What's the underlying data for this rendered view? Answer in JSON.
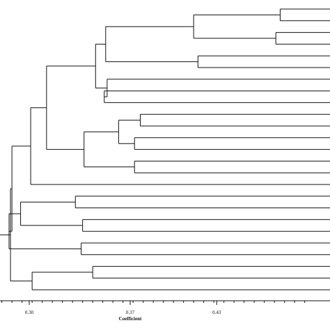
{
  "chart_data": {
    "type": "dendrogram",
    "orientation": "horizontal",
    "xlabel": "Coefficient",
    "ticks": [
      {
        "value": 0.3,
        "label": "0.30"
      },
      {
        "value": 0.37,
        "label": "0.37"
      },
      {
        "value": 0.43,
        "label": "0.43"
      }
    ],
    "leaf_count": 25,
    "tree": {
      "h": 0.287,
      "children": [
        {
          "h": 0.288,
          "children": [
            {
              "h": 0.301,
              "children": [
                {
                  "h": 0.312,
                  "children": [
                    {
                      "h": 0.346,
                      "children": [
                        {
                          "h": 0.353,
                          "children": [
                            {
                              "h": 0.414,
                              "children": [
                                {
                                  "h": 0.474,
                                  "children": [
                                    {
                                      "leaf": 1
                                    },
                                    {
                                      "leaf": 2
                                    }
                                  ]
                                },
                                {
                                  "h": 0.471,
                                  "children": [
                                    {
                                      "leaf": 3
                                    },
                                    {
                                      "leaf": 4
                                    }
                                  ]
                                }
                              ]
                            },
                            {
                              "h": 0.417,
                              "children": [
                                {
                                  "leaf": 5
                                },
                                {
                                  "leaf": 6
                                }
                              ]
                            }
                          ]
                        },
                        {
                          "h": 0.354,
                          "children": [
                            {
                              "leaf": 7
                            },
                            {
                              "h": 0.352,
                              "children": [
                                {
                                  "leaf": 8
                                },
                                {
                                  "leaf": 9
                                }
                              ]
                            }
                          ]
                        }
                      ]
                    },
                    {
                      "h": 0.338,
                      "children": [
                        {
                          "h": 0.362,
                          "children": [
                            {
                              "h": 0.377,
                              "children": [
                                {
                                  "leaf": 10
                                },
                                {
                                  "leaf": 11
                                }
                              ]
                            },
                            {
                              "h": 0.373,
                              "children": [
                                {
                                  "leaf": 12
                                },
                                {
                                  "leaf": 13
                                }
                              ]
                            }
                          ]
                        },
                        {
                          "h": 0.373,
                          "children": [
                            {
                              "leaf": 14
                            },
                            {
                              "leaf": 15
                            }
                          ]
                        }
                      ]
                    }
                  ]
                },
                {
                  "leaf": 16
                }
              ]
            },
            {
              "h": 0.286,
              "children": [
                {
                  "h": 0.294,
                  "children": [
                    {
                      "h": 0.332,
                      "children": [
                        {
                          "leaf": 17
                        },
                        {
                          "leaf": 18
                        }
                      ]
                    },
                    {
                      "h": 0.337,
                      "children": [
                        {
                          "leaf": 19
                        },
                        {
                          "leaf": 20
                        }
                      ]
                    }
                  ]
                },
                {
                  "h": 0.336,
                  "children": [
                    {
                      "leaf": 21
                    },
                    {
                      "leaf": 22
                    }
                  ]
                }
              ]
            }
          ]
        },
        {
          "h": 0.302,
          "children": [
            {
              "h": 0.344,
              "children": [
                {
                  "leaf": 23
                },
                {
                  "leaf": 24
                }
              ]
            },
            {
              "leaf": 25
            }
          ]
        }
      ]
    }
  }
}
